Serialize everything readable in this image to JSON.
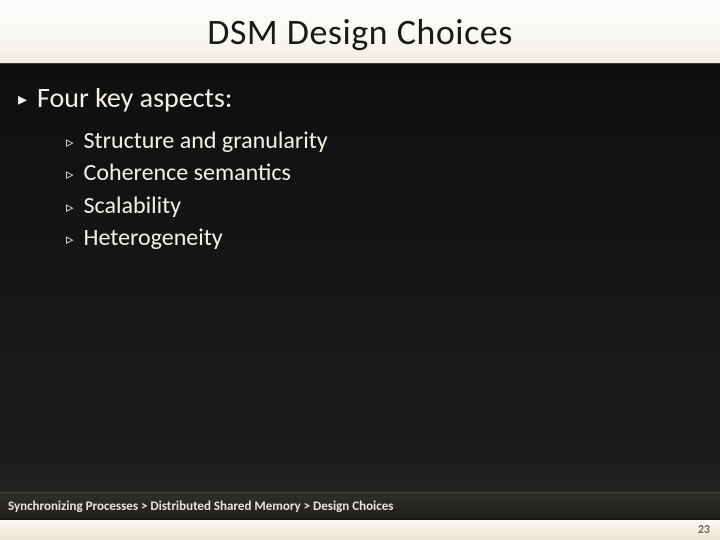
{
  "title": "DSM Design Choices",
  "main_bullet_text": "Four key aspects:",
  "sub_bullets": {
    "0": "Structure and granularity",
    "1": "Coherence semantics",
    "2": "Scalability",
    "3": "Heterogeneity"
  },
  "breadcrumb": "Synchronizing Processes > Distributed Shared Memory > Design Choices",
  "page_number": "23",
  "colors": {
    "title_bg_top": "#fdfdfd",
    "title_bg_bottom": "#f1ede2",
    "title_text": "#1a1a1a",
    "body_bg_top": "#131313",
    "body_bg_bottom": "#2a2a26",
    "body_text": "#f2efe6",
    "breadcrumb_bg": "#2f2f2b",
    "breadcrumb_text": "#e7e3d6",
    "page_strip_bg": "#fbf9f1",
    "page_num_text": "#6e675a"
  },
  "typography": {
    "title_fontsize": 36,
    "main_bullet_fontsize": 28,
    "sub_bullet_fontsize": 24,
    "breadcrumb_fontsize": 13,
    "page_num_fontsize": 12,
    "font_family": "Calibri"
  },
  "bullets": {
    "main_marker": "▸",
    "sub_marker": "▹"
  }
}
